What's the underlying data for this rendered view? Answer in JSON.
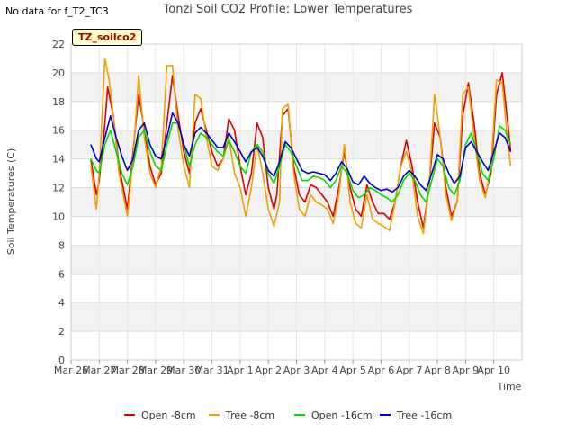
{
  "header": {
    "no_data_note": "No data for f_T2_TC3",
    "title": "Tonzi Soil CO2 Profile: Lower Temperatures",
    "badge": "TZ_soilco2"
  },
  "chart_data": {
    "type": "line",
    "title": "Tonzi Soil CO2 Profile: Lower Temperatures",
    "xlabel": "Time",
    "ylabel": "Soil Temperatures (C)",
    "ylim": [
      0,
      22
    ],
    "xlim": [
      0,
      16
    ],
    "x_tick_labels": [
      "Mar 26",
      "Mar 27",
      "Mar 28",
      "Mar 29",
      "Mar 30",
      "Mar 31",
      "Apr 1",
      "Apr 2",
      "Apr 3",
      "Apr 4",
      "Apr 5",
      "Apr 6",
      "Apr 7",
      "Apr 8",
      "Apr 9",
      "Apr 10"
    ],
    "y_ticks": [
      0,
      2,
      4,
      6,
      8,
      10,
      12,
      14,
      16,
      18,
      20,
      22
    ],
    "grid": true,
    "legend_position": "bottom",
    "series": [
      {
        "name": "Open -8cm",
        "color": "#dd0000",
        "points": [
          [
            0.7,
            14.0
          ],
          [
            0.9,
            11.5
          ],
          [
            1.0,
            12.5
          ],
          [
            1.2,
            16.5
          ],
          [
            1.3,
            19.0
          ],
          [
            1.5,
            17.0
          ],
          [
            1.7,
            13.5
          ],
          [
            1.9,
            11.5
          ],
          [
            2.0,
            10.5
          ],
          [
            2.2,
            14.5
          ],
          [
            2.4,
            18.5
          ],
          [
            2.6,
            16.0
          ],
          [
            2.8,
            13.5
          ],
          [
            3.0,
            12.2
          ],
          [
            3.2,
            13.0
          ],
          [
            3.4,
            16.5
          ],
          [
            3.6,
            19.8
          ],
          [
            3.8,
            17.0
          ],
          [
            4.0,
            14.5
          ],
          [
            4.2,
            13.0
          ],
          [
            4.4,
            16.5
          ],
          [
            4.6,
            17.5
          ],
          [
            4.8,
            16.0
          ],
          [
            5.0,
            14.5
          ],
          [
            5.2,
            13.5
          ],
          [
            5.4,
            14.0
          ],
          [
            5.6,
            16.8
          ],
          [
            5.8,
            16.0
          ],
          [
            6.0,
            13.5
          ],
          [
            6.2,
            11.5
          ],
          [
            6.4,
            13.0
          ],
          [
            6.6,
            16.5
          ],
          [
            6.8,
            15.5
          ],
          [
            7.0,
            12.0
          ],
          [
            7.2,
            10.5
          ],
          [
            7.3,
            11.5
          ],
          [
            7.5,
            17.0
          ],
          [
            7.7,
            17.5
          ],
          [
            7.9,
            13.5
          ],
          [
            8.1,
            11.5
          ],
          [
            8.3,
            11.0
          ],
          [
            8.5,
            12.2
          ],
          [
            8.7,
            12.0
          ],
          [
            8.9,
            11.5
          ],
          [
            9.1,
            11.0
          ],
          [
            9.3,
            10.0
          ],
          [
            9.5,
            12.0
          ],
          [
            9.7,
            14.5
          ],
          [
            9.9,
            12.0
          ],
          [
            10.1,
            10.5
          ],
          [
            10.3,
            10.0
          ],
          [
            10.5,
            12.2
          ],
          [
            10.7,
            11.0
          ],
          [
            10.9,
            10.2
          ],
          [
            11.1,
            10.2
          ],
          [
            11.3,
            9.8
          ],
          [
            11.5,
            11.0
          ],
          [
            11.7,
            13.5
          ],
          [
            11.9,
            15.3
          ],
          [
            12.1,
            13.5
          ],
          [
            12.3,
            11.0
          ],
          [
            12.5,
            9.2
          ],
          [
            12.7,
            12.0
          ],
          [
            12.9,
            16.5
          ],
          [
            13.1,
            15.5
          ],
          [
            13.3,
            12.0
          ],
          [
            13.5,
            10.0
          ],
          [
            13.7,
            11.0
          ],
          [
            13.9,
            17.0
          ],
          [
            14.1,
            19.3
          ],
          [
            14.3,
            16.5
          ],
          [
            14.5,
            13.0
          ],
          [
            14.7,
            11.5
          ],
          [
            14.9,
            13.0
          ],
          [
            15.1,
            18.5
          ],
          [
            15.3,
            20.0
          ],
          [
            15.5,
            16.5
          ],
          [
            15.6,
            14.5
          ]
        ]
      },
      {
        "name": "Tree -8cm",
        "color": "#f0a000",
        "points": [
          [
            0.7,
            13.5
          ],
          [
            0.9,
            10.5
          ],
          [
            1.0,
            13.0
          ],
          [
            1.2,
            21.0
          ],
          [
            1.35,
            19.5
          ],
          [
            1.5,
            17.0
          ],
          [
            1.7,
            13.0
          ],
          [
            1.9,
            11.0
          ],
          [
            2.0,
            10.0
          ],
          [
            2.2,
            14.0
          ],
          [
            2.4,
            19.8
          ],
          [
            2.6,
            15.5
          ],
          [
            2.8,
            13.0
          ],
          [
            3.0,
            12.0
          ],
          [
            3.2,
            13.5
          ],
          [
            3.4,
            20.5
          ],
          [
            3.6,
            20.5
          ],
          [
            3.8,
            16.0
          ],
          [
            4.0,
            13.5
          ],
          [
            4.2,
            12.0
          ],
          [
            4.4,
            18.5
          ],
          [
            4.6,
            18.2
          ],
          [
            4.8,
            15.5
          ],
          [
            5.0,
            13.5
          ],
          [
            5.2,
            13.2
          ],
          [
            5.4,
            14.0
          ],
          [
            5.6,
            15.5
          ],
          [
            5.8,
            13.0
          ],
          [
            6.0,
            12.0
          ],
          [
            6.2,
            10.0
          ],
          [
            6.4,
            12.0
          ],
          [
            6.6,
            15.0
          ],
          [
            6.8,
            13.0
          ],
          [
            7.0,
            10.5
          ],
          [
            7.2,
            9.3
          ],
          [
            7.4,
            11.0
          ],
          [
            7.5,
            17.5
          ],
          [
            7.7,
            17.8
          ],
          [
            7.9,
            13.0
          ],
          [
            8.1,
            10.5
          ],
          [
            8.3,
            10.0
          ],
          [
            8.5,
            11.5
          ],
          [
            8.7,
            11.0
          ],
          [
            8.9,
            10.8
          ],
          [
            9.1,
            10.5
          ],
          [
            9.3,
            9.5
          ],
          [
            9.5,
            11.5
          ],
          [
            9.7,
            15.0
          ],
          [
            9.9,
            11.0
          ],
          [
            10.1,
            9.5
          ],
          [
            10.3,
            9.2
          ],
          [
            10.5,
            11.5
          ],
          [
            10.7,
            9.8
          ],
          [
            10.9,
            9.5
          ],
          [
            11.1,
            9.3
          ],
          [
            11.3,
            9.0
          ],
          [
            11.5,
            11.0
          ],
          [
            11.7,
            13.5
          ],
          [
            11.9,
            14.5
          ],
          [
            12.1,
            13.0
          ],
          [
            12.3,
            10.0
          ],
          [
            12.5,
            8.8
          ],
          [
            12.7,
            12.0
          ],
          [
            12.9,
            18.5
          ],
          [
            13.1,
            15.5
          ],
          [
            13.3,
            11.5
          ],
          [
            13.5,
            9.7
          ],
          [
            13.7,
            11.0
          ],
          [
            13.9,
            18.5
          ],
          [
            14.1,
            19.0
          ],
          [
            14.3,
            15.5
          ],
          [
            14.5,
            12.5
          ],
          [
            14.7,
            11.3
          ],
          [
            14.9,
            13.5
          ],
          [
            15.1,
            19.5
          ],
          [
            15.3,
            19.3
          ],
          [
            15.5,
            15.0
          ],
          [
            15.6,
            13.5
          ]
        ]
      },
      {
        "name": "Open -16cm",
        "color": "#00dd00",
        "points": [
          [
            0.7,
            14.0
          ],
          [
            0.9,
            13.2
          ],
          [
            1.0,
            13.0
          ],
          [
            1.2,
            15.0
          ],
          [
            1.4,
            16.0
          ],
          [
            1.6,
            14.5
          ],
          [
            1.8,
            13.0
          ],
          [
            2.0,
            12.2
          ],
          [
            2.2,
            13.5
          ],
          [
            2.4,
            15.5
          ],
          [
            2.6,
            16.0
          ],
          [
            2.8,
            14.5
          ],
          [
            3.0,
            13.5
          ],
          [
            3.2,
            13.2
          ],
          [
            3.4,
            15.0
          ],
          [
            3.6,
            16.5
          ],
          [
            3.8,
            16.5
          ],
          [
            4.0,
            15.0
          ],
          [
            4.2,
            13.5
          ],
          [
            4.4,
            15.0
          ],
          [
            4.6,
            15.8
          ],
          [
            4.8,
            15.5
          ],
          [
            5.0,
            15.0
          ],
          [
            5.2,
            14.5
          ],
          [
            5.4,
            14.2
          ],
          [
            5.6,
            15.3
          ],
          [
            5.8,
            14.5
          ],
          [
            6.0,
            13.5
          ],
          [
            6.2,
            13.0
          ],
          [
            6.4,
            14.5
          ],
          [
            6.6,
            15.0
          ],
          [
            6.8,
            14.5
          ],
          [
            7.0,
            13.0
          ],
          [
            7.2,
            12.3
          ],
          [
            7.4,
            13.5
          ],
          [
            7.6,
            15.0
          ],
          [
            7.8,
            14.5
          ],
          [
            8.0,
            13.5
          ],
          [
            8.2,
            12.5
          ],
          [
            8.4,
            12.5
          ],
          [
            8.6,
            12.8
          ],
          [
            8.8,
            12.7
          ],
          [
            9.0,
            12.5
          ],
          [
            9.2,
            12.0
          ],
          [
            9.4,
            12.5
          ],
          [
            9.6,
            13.5
          ],
          [
            9.8,
            13.0
          ],
          [
            10.0,
            11.8
          ],
          [
            10.2,
            11.3
          ],
          [
            10.4,
            11.5
          ],
          [
            10.6,
            12.0
          ],
          [
            10.8,
            11.8
          ],
          [
            11.0,
            11.5
          ],
          [
            11.2,
            11.3
          ],
          [
            11.4,
            11.0
          ],
          [
            11.6,
            11.5
          ],
          [
            11.8,
            12.5
          ],
          [
            12.0,
            13.0
          ],
          [
            12.2,
            12.5
          ],
          [
            12.4,
            11.5
          ],
          [
            12.6,
            11.0
          ],
          [
            12.8,
            12.5
          ],
          [
            13.0,
            14.0
          ],
          [
            13.2,
            13.5
          ],
          [
            13.4,
            12.0
          ],
          [
            13.6,
            11.5
          ],
          [
            13.8,
            12.5
          ],
          [
            14.0,
            15.0
          ],
          [
            14.2,
            15.8
          ],
          [
            14.4,
            14.5
          ],
          [
            14.6,
            13.0
          ],
          [
            14.8,
            12.5
          ],
          [
            15.0,
            14.0
          ],
          [
            15.2,
            16.3
          ],
          [
            15.4,
            16.0
          ],
          [
            15.6,
            15.0
          ]
        ]
      },
      {
        "name": "Tree -16cm",
        "color": "#0000cc",
        "points": [
          [
            0.7,
            15.0
          ],
          [
            0.9,
            14.0
          ],
          [
            1.0,
            13.8
          ],
          [
            1.2,
            15.5
          ],
          [
            1.4,
            17.0
          ],
          [
            1.6,
            15.5
          ],
          [
            1.8,
            14.2
          ],
          [
            2.0,
            13.2
          ],
          [
            2.2,
            14.0
          ],
          [
            2.4,
            16.0
          ],
          [
            2.6,
            16.5
          ],
          [
            2.8,
            15.0
          ],
          [
            3.0,
            14.2
          ],
          [
            3.2,
            14.0
          ],
          [
            3.4,
            15.5
          ],
          [
            3.6,
            17.2
          ],
          [
            3.8,
            16.5
          ],
          [
            4.0,
            15.0
          ],
          [
            4.2,
            14.2
          ],
          [
            4.4,
            15.8
          ],
          [
            4.6,
            16.2
          ],
          [
            4.8,
            15.8
          ],
          [
            5.0,
            15.3
          ],
          [
            5.2,
            14.8
          ],
          [
            5.4,
            14.8
          ],
          [
            5.6,
            15.8
          ],
          [
            5.8,
            15.2
          ],
          [
            6.0,
            14.5
          ],
          [
            6.2,
            13.8
          ],
          [
            6.4,
            14.5
          ],
          [
            6.6,
            14.8
          ],
          [
            6.8,
            14.2
          ],
          [
            7.0,
            13.2
          ],
          [
            7.2,
            12.8
          ],
          [
            7.4,
            13.8
          ],
          [
            7.6,
            15.2
          ],
          [
            7.8,
            14.8
          ],
          [
            8.0,
            14.0
          ],
          [
            8.2,
            13.2
          ],
          [
            8.4,
            13.0
          ],
          [
            8.6,
            13.1
          ],
          [
            8.8,
            13.0
          ],
          [
            9.0,
            12.9
          ],
          [
            9.2,
            12.5
          ],
          [
            9.4,
            13.0
          ],
          [
            9.6,
            13.8
          ],
          [
            9.8,
            13.3
          ],
          [
            10.0,
            12.4
          ],
          [
            10.2,
            12.2
          ],
          [
            10.4,
            12.8
          ],
          [
            10.6,
            12.3
          ],
          [
            10.8,
            12.0
          ],
          [
            11.0,
            11.8
          ],
          [
            11.2,
            11.9
          ],
          [
            11.4,
            11.7
          ],
          [
            11.6,
            12.0
          ],
          [
            11.8,
            12.8
          ],
          [
            12.0,
            13.2
          ],
          [
            12.2,
            12.8
          ],
          [
            12.4,
            12.2
          ],
          [
            12.6,
            11.8
          ],
          [
            12.8,
            13.0
          ],
          [
            13.0,
            14.3
          ],
          [
            13.2,
            14.0
          ],
          [
            13.4,
            13.0
          ],
          [
            13.6,
            12.3
          ],
          [
            13.8,
            12.8
          ],
          [
            14.0,
            14.8
          ],
          [
            14.2,
            15.2
          ],
          [
            14.4,
            14.5
          ],
          [
            14.6,
            13.8
          ],
          [
            14.8,
            13.2
          ],
          [
            15.0,
            14.5
          ],
          [
            15.2,
            15.8
          ],
          [
            15.4,
            15.5
          ],
          [
            15.6,
            14.5
          ]
        ]
      }
    ]
  }
}
